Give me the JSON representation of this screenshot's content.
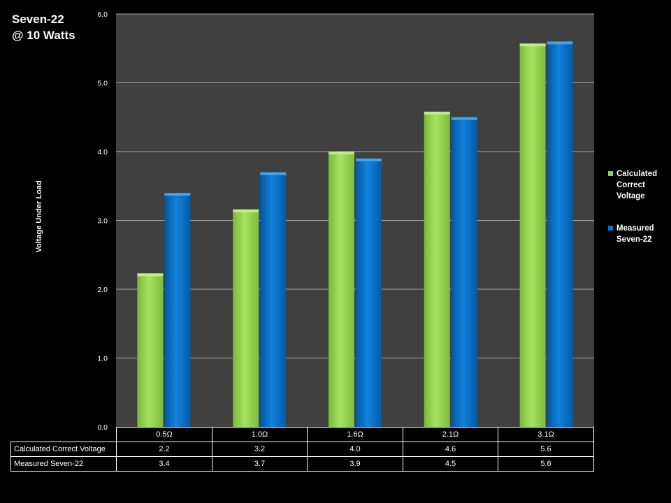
{
  "title": {
    "line1": "Seven-22",
    "line2": "@ 10 Watts"
  },
  "chart_data": {
    "type": "bar",
    "categories": [
      "0.5Ω",
      "1.0Ω",
      "1.6Ω",
      "2.1Ω",
      "3.1Ω"
    ],
    "series": [
      {
        "name": "Calculated Correct Voltage",
        "legend_label": "Calculated Correct Voltage",
        "table_label": "Calculated Correct Voltage",
        "values": [
          2.23,
          3.16,
          4.0,
          4.58,
          5.57
        ],
        "table_values": [
          "2.2",
          "3.2",
          "4.0",
          "4.6",
          "5.6"
        ],
        "color": "#92d050"
      },
      {
        "name": "Measured Seven-22",
        "legend_label": "Measured Seven-22",
        "table_label": "Measured Seven-22",
        "values": [
          3.4,
          3.7,
          3.9,
          4.5,
          5.6
        ],
        "table_values": [
          "3.4",
          "3.7",
          "3.9",
          "4.5",
          "5.6"
        ],
        "color": "#0070c0"
      }
    ],
    "ylabel": "Voltage Under Load",
    "xlabel": "",
    "ylim": [
      0,
      6
    ],
    "yticks": [
      "0.0",
      "1.0",
      "2.0",
      "3.0",
      "4.0",
      "5.0",
      "6.0"
    ],
    "grid": true,
    "legend_position": "right",
    "plot_background": "#404040"
  }
}
